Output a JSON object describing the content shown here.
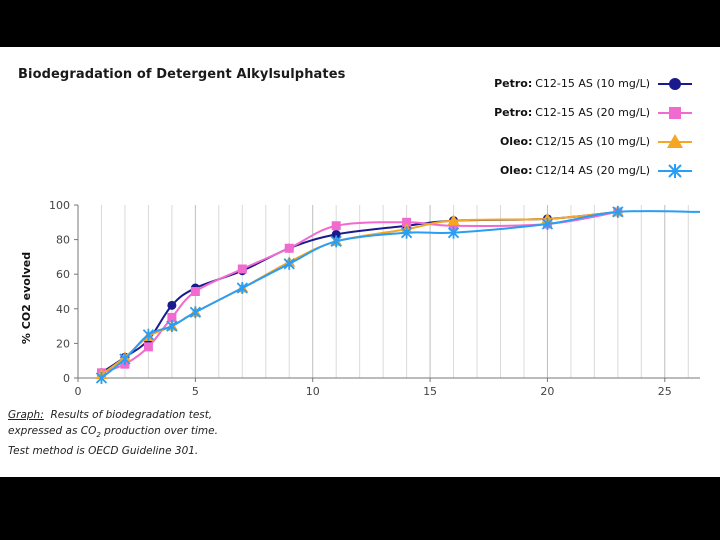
{
  "title": "Biodegradation of Detergent Alkylsulphates",
  "legend": [
    {
      "prefix": "Petro:",
      "text": "C12-15 AS (10 mg/L)",
      "color": "#1a1a8c",
      "marker": "circle"
    },
    {
      "prefix": "Petro:",
      "text": "C12-15 AS (20 mg/L)",
      "color": "#f06ad0",
      "marker": "square"
    },
    {
      "prefix": "Oleo:",
      "text": "C12/15 AS (10 mg/L)",
      "color": "#f5a623",
      "marker": "triangle"
    },
    {
      "prefix": "Oleo:",
      "text": "C12/14 AS (20 mg/L)",
      "color": "#2a9df4",
      "marker": "x"
    }
  ],
  "caption": {
    "label": "Graph:",
    "line1": "Results of biodegradation test,",
    "line2_pre": "expressed as CO",
    "line2_sub": "2",
    "line2_post": " production over time.",
    "line3": "Test method is OECD Guideline 301."
  },
  "chart_data": {
    "type": "line",
    "ylabel": "% CO2 evolved",
    "xlabel": "",
    "xlim": [
      0,
      26.5
    ],
    "ylim": [
      0,
      100
    ],
    "xticks": [
      0,
      5,
      10,
      15,
      20,
      25
    ],
    "yticks": [
      0,
      20,
      40,
      60,
      80,
      100
    ],
    "grid": "vertical",
    "series": [
      {
        "name": "Petro: C12-15 AS (10 mg/L)",
        "color": "#1a1a8c",
        "marker": "circle",
        "x": [
          1,
          2,
          3,
          4,
          5,
          7,
          9,
          11,
          14,
          16,
          20,
          23
        ],
        "y": [
          3,
          12,
          22,
          42,
          52,
          62,
          75,
          83,
          88,
          91,
          92,
          96
        ]
      },
      {
        "name": "Petro: C12-15 AS (20 mg/L)",
        "color": "#f06ad0",
        "marker": "square",
        "x": [
          1,
          2,
          3,
          4,
          5,
          7,
          9,
          11,
          14,
          16,
          20,
          23
        ],
        "y": [
          3,
          8,
          18,
          35,
          50,
          63,
          75,
          88,
          90,
          88,
          89,
          96
        ]
      },
      {
        "name": "Oleo: C12/15 AS (10 mg/L)",
        "color": "#f5a623",
        "marker": "triangle",
        "x": [
          1,
          2,
          3,
          4,
          5,
          7,
          9,
          11,
          14,
          16,
          20,
          23
        ],
        "y": [
          2,
          12,
          24,
          30,
          38,
          52,
          67,
          79,
          86,
          91,
          92,
          96
        ]
      },
      {
        "name": "Oleo: C12/14 AS (20 mg/L)",
        "color": "#2a9df4",
        "marker": "x",
        "x": [
          1,
          2,
          3,
          4,
          5,
          7,
          9,
          11,
          14,
          16,
          20,
          23,
          26.5
        ],
        "y": [
          0,
          11,
          25,
          30,
          38,
          52,
          66,
          79,
          84,
          84,
          89,
          96,
          96
        ]
      }
    ]
  }
}
